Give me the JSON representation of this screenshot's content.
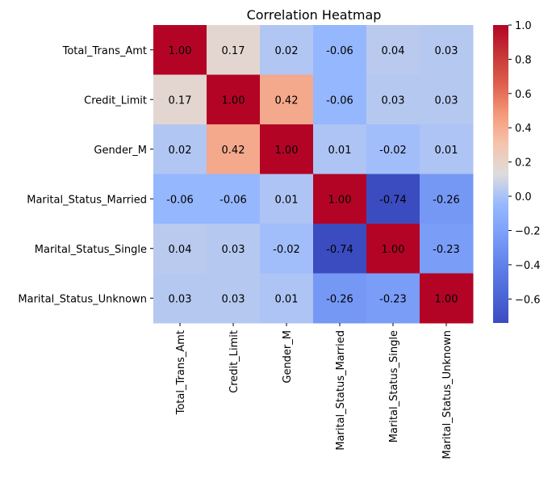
{
  "chart_data": {
    "type": "heatmap",
    "title": "Correlation Heatmap",
    "xlabel": "",
    "ylabel": "",
    "rows": [
      "Total_Trans_Amt",
      "Credit_Limit",
      "Gender_M",
      "Marital_Status_Married",
      "Marital_Status_Single",
      "Marital_Status_Unknown"
    ],
    "columns": [
      "Total_Trans_Amt",
      "Credit_Limit",
      "Gender_M",
      "Marital_Status_Married",
      "Marital_Status_Single",
      "Marital_Status_Unknown"
    ],
    "values": [
      [
        1.0,
        0.17,
        0.02,
        -0.06,
        0.04,
        0.03
      ],
      [
        0.17,
        1.0,
        0.42,
        -0.06,
        0.03,
        0.03
      ],
      [
        0.02,
        0.42,
        1.0,
        0.01,
        -0.02,
        0.01
      ],
      [
        -0.06,
        -0.06,
        0.01,
        1.0,
        -0.74,
        -0.26
      ],
      [
        0.04,
        0.03,
        -0.02,
        -0.74,
        1.0,
        -0.23
      ],
      [
        0.03,
        0.03,
        0.01,
        -0.26,
        -0.23,
        1.0
      ]
    ],
    "colormap": "coolwarm",
    "colorbar": {
      "range": [
        -0.74,
        1.0
      ],
      "ticks": [
        1.0,
        0.8,
        0.6,
        0.4,
        0.2,
        0.0,
        -0.2,
        -0.4,
        -0.6
      ],
      "tick_labels": [
        "1.0",
        "0.8",
        "0.6",
        "0.4",
        "0.2",
        "0.0",
        "−0.2",
        "−0.4",
        "−0.6"
      ]
    },
    "annotation_format": "0.00",
    "colors": {
      "low": "#3b4cc0",
      "mid": "#dddcdc",
      "high": "#b40426",
      "text_dark": "#262626",
      "text_light": "#ffffff"
    }
  }
}
